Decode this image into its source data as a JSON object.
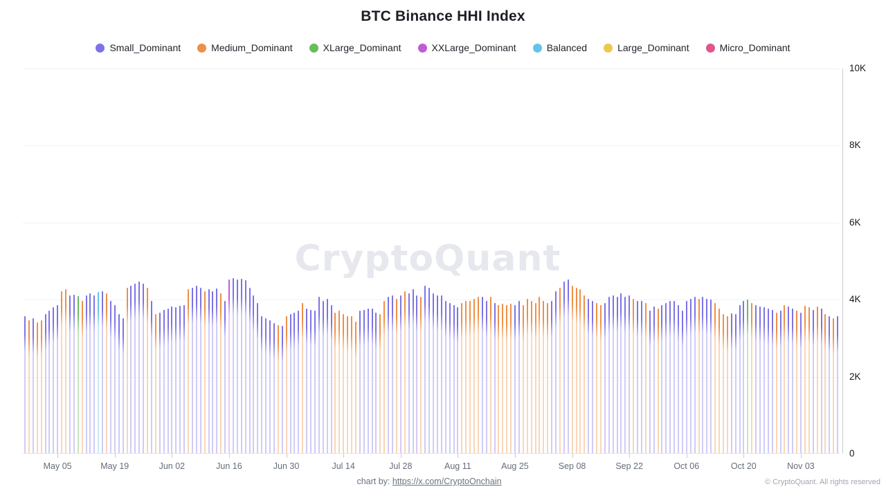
{
  "title": "BTC Binance HHI Index",
  "watermark": "CryptoQuant",
  "legend": [
    {
      "key": "S",
      "label": "Small_Dominant",
      "color": "#7d72e6"
    },
    {
      "key": "M",
      "label": "Medium_Dominant",
      "color": "#ee8f45"
    },
    {
      "key": "X",
      "label": "XLarge_Dominant",
      "color": "#67bd5a"
    },
    {
      "key": "XX",
      "label": "XXLarge_Dominant",
      "color": "#c05cd6"
    },
    {
      "key": "B",
      "label": "Balanced",
      "color": "#62c4e8"
    },
    {
      "key": "L",
      "label": "Large_Dominant",
      "color": "#ecc84d"
    },
    {
      "key": "MI",
      "label": "Micro_Dominant",
      "color": "#e0558c"
    }
  ],
  "category_colors": {
    "S": {
      "solid": "#7d72e6",
      "light": "#d0ccf6"
    },
    "M": {
      "solid": "#ee8f45",
      "light": "#f9d6b8"
    },
    "X": {
      "solid": "#67bd5a",
      "light": "#c5e6bd"
    },
    "B": {
      "solid": "#62c4e8",
      "light": "#c8eaf7"
    },
    "XX": {
      "solid": "#c05cd6",
      "light": "#ecc9f2"
    },
    "L": {
      "solid": "#ecc84d",
      "light": "#f8ecc0"
    },
    "MI": {
      "solid": "#e0558c",
      "light": "#f5c5d8"
    }
  },
  "footer": {
    "credit_prefix": "chart by:",
    "credit_link": "https://x.com/CryptoOnchain",
    "copyright": "© CryptoQuant. All rights reserved"
  },
  "chart_data": {
    "type": "bar",
    "title": "BTC Binance HHI Index",
    "ylim": [
      0,
      10000
    ],
    "y_tick_labels": [
      "10K",
      "8K",
      "6K",
      "4K",
      "2K",
      "0"
    ],
    "y_tick_values": [
      10000,
      8000,
      6000,
      4000,
      2000,
      0
    ],
    "grid": "horizontal",
    "legend_position": "top",
    "bar_count": 200,
    "x_ticks": [
      {
        "label": "May 05",
        "day": 8
      },
      {
        "label": "May 19",
        "day": 22
      },
      {
        "label": "Jun 02",
        "day": 36
      },
      {
        "label": "Jun 16",
        "day": 50
      },
      {
        "label": "Jun 30",
        "day": 64
      },
      {
        "label": "Jul 14",
        "day": 78
      },
      {
        "label": "Jul 28",
        "day": 92
      },
      {
        "label": "Aug 11",
        "day": 106
      },
      {
        "label": "Aug 25",
        "day": 120
      },
      {
        "label": "Sep 08",
        "day": 134
      },
      {
        "label": "Sep 22",
        "day": 148
      },
      {
        "label": "Oct 06",
        "day": 162
      },
      {
        "label": "Oct 20",
        "day": 176
      },
      {
        "label": "Nov 03",
        "day": 190
      }
    ],
    "points": [
      [
        "S",
        3550
      ],
      [
        "M",
        3450
      ],
      [
        "S",
        3500
      ],
      [
        "M",
        3400
      ],
      [
        "M",
        3450
      ],
      [
        "S",
        3600
      ],
      [
        "S",
        3700
      ],
      [
        "S",
        3780
      ],
      [
        "S",
        3850
      ],
      [
        "M",
        4200
      ],
      [
        "M",
        4250
      ],
      [
        "S",
        4100
      ],
      [
        "S",
        4120
      ],
      [
        "X",
        4080
      ],
      [
        "M",
        3950
      ],
      [
        "S",
        4100
      ],
      [
        "S",
        4150
      ],
      [
        "S",
        4100
      ],
      [
        "B",
        4180
      ],
      [
        "S",
        4200
      ],
      [
        "M",
        4150
      ],
      [
        "S",
        3950
      ],
      [
        "S",
        3850
      ],
      [
        "S",
        3600
      ],
      [
        "S",
        3500
      ],
      [
        "M",
        4300
      ],
      [
        "S",
        4350
      ],
      [
        "S",
        4400
      ],
      [
        "S",
        4450
      ],
      [
        "S",
        4400
      ],
      [
        "M",
        4300
      ],
      [
        "S",
        3950
      ],
      [
        "M",
        3600
      ],
      [
        "S",
        3650
      ],
      [
        "S",
        3720
      ],
      [
        "S",
        3750
      ],
      [
        "S",
        3800
      ],
      [
        "S",
        3780
      ],
      [
        "S",
        3820
      ],
      [
        "S",
        3850
      ],
      [
        "M",
        4250
      ],
      [
        "S",
        4300
      ],
      [
        "S",
        4350
      ],
      [
        "S",
        4300
      ],
      [
        "M",
        4200
      ],
      [
        "S",
        4250
      ],
      [
        "S",
        4200
      ],
      [
        "S",
        4280
      ],
      [
        "M",
        4150
      ],
      [
        "S",
        3950
      ],
      [
        "XX",
        4500
      ],
      [
        "S",
        4550
      ],
      [
        "S",
        4500
      ],
      [
        "S",
        4520
      ],
      [
        "S",
        4480
      ],
      [
        "S",
        4300
      ],
      [
        "S",
        4100
      ],
      [
        "S",
        3900
      ],
      [
        "S",
        3550
      ],
      [
        "S",
        3500
      ],
      [
        "S",
        3450
      ],
      [
        "S",
        3380
      ],
      [
        "M",
        3320
      ],
      [
        "S",
        3300
      ],
      [
        "M",
        3550
      ],
      [
        "S",
        3600
      ],
      [
        "S",
        3650
      ],
      [
        "S",
        3700
      ],
      [
        "M",
        3900
      ],
      [
        "S",
        3750
      ],
      [
        "S",
        3720
      ],
      [
        "S",
        3700
      ],
      [
        "S",
        4050
      ],
      [
        "S",
        3950
      ],
      [
        "S",
        4000
      ],
      [
        "S",
        3850
      ],
      [
        "M",
        3650
      ],
      [
        "M",
        3700
      ],
      [
        "M",
        3600
      ],
      [
        "M",
        3550
      ],
      [
        "M",
        3550
      ],
      [
        "M",
        3420
      ],
      [
        "S",
        3700
      ],
      [
        "S",
        3720
      ],
      [
        "S",
        3750
      ],
      [
        "S",
        3750
      ],
      [
        "S",
        3650
      ],
      [
        "M",
        3600
      ],
      [
        "M",
        3950
      ],
      [
        "S",
        4050
      ],
      [
        "S",
        4100
      ],
      [
        "M",
        4000
      ],
      [
        "S",
        4100
      ],
      [
        "M",
        4200
      ],
      [
        "S",
        4150
      ],
      [
        "S",
        4250
      ],
      [
        "S",
        4100
      ],
      [
        "M",
        4050
      ],
      [
        "S",
        4350
      ],
      [
        "S",
        4300
      ],
      [
        "S",
        4150
      ],
      [
        "S",
        4100
      ],
      [
        "S",
        4100
      ],
      [
        "S",
        3950
      ],
      [
        "S",
        3900
      ],
      [
        "S",
        3850
      ],
      [
        "S",
        3780
      ],
      [
        "M",
        3900
      ],
      [
        "M",
        3950
      ],
      [
        "M",
        3950
      ],
      [
        "M",
        4000
      ],
      [
        "M",
        4050
      ],
      [
        "S",
        4050
      ],
      [
        "S",
        3950
      ],
      [
        "M",
        4050
      ],
      [
        "S",
        3900
      ],
      [
        "M",
        3850
      ],
      [
        "M",
        3880
      ],
      [
        "M",
        3850
      ],
      [
        "M",
        3870
      ],
      [
        "S",
        3850
      ],
      [
        "S",
        3950
      ],
      [
        "M",
        3850
      ],
      [
        "M",
        4000
      ],
      [
        "M",
        3950
      ],
      [
        "M",
        3900
      ],
      [
        "M",
        4050
      ],
      [
        "M",
        3950
      ],
      [
        "M",
        3900
      ],
      [
        "S",
        3950
      ],
      [
        "S",
        4200
      ],
      [
        "M",
        4300
      ],
      [
        "S",
        4450
      ],
      [
        "S",
        4500
      ],
      [
        "M",
        4350
      ],
      [
        "M",
        4300
      ],
      [
        "M",
        4250
      ],
      [
        "M",
        4100
      ],
      [
        "S",
        4000
      ],
      [
        "S",
        3950
      ],
      [
        "M",
        3900
      ],
      [
        "M",
        3850
      ],
      [
        "S",
        3900
      ],
      [
        "S",
        4050
      ],
      [
        "S",
        4100
      ],
      [
        "S",
        4050
      ],
      [
        "S",
        4150
      ],
      [
        "S",
        4050
      ],
      [
        "S",
        4100
      ],
      [
        "M",
        4000
      ],
      [
        "S",
        3950
      ],
      [
        "S",
        3950
      ],
      [
        "M",
        3900
      ],
      [
        "S",
        3700
      ],
      [
        "S",
        3800
      ],
      [
        "M",
        3750
      ],
      [
        "S",
        3850
      ],
      [
        "S",
        3900
      ],
      [
        "S",
        3950
      ],
      [
        "S",
        3950
      ],
      [
        "S",
        3850
      ],
      [
        "S",
        3700
      ],
      [
        "S",
        3950
      ],
      [
        "S",
        4000
      ],
      [
        "S",
        4050
      ],
      [
        "M",
        4000
      ],
      [
        "S",
        4050
      ],
      [
        "S",
        4000
      ],
      [
        "S",
        3980
      ],
      [
        "M",
        3900
      ],
      [
        "M",
        3750
      ],
      [
        "M",
        3600
      ],
      [
        "M",
        3550
      ],
      [
        "S",
        3620
      ],
      [
        "S",
        3600
      ],
      [
        "S",
        3850
      ],
      [
        "S",
        3950
      ],
      [
        "X",
        3980
      ],
      [
        "M",
        3900
      ],
      [
        "S",
        3850
      ],
      [
        "S",
        3800
      ],
      [
        "S",
        3780
      ],
      [
        "S",
        3750
      ],
      [
        "S",
        3720
      ],
      [
        "M",
        3650
      ],
      [
        "S",
        3700
      ],
      [
        "M",
        3850
      ],
      [
        "S",
        3800
      ],
      [
        "S",
        3750
      ],
      [
        "M",
        3700
      ],
      [
        "S",
        3650
      ],
      [
        "M",
        3820
      ],
      [
        "M",
        3780
      ],
      [
        "S",
        3720
      ],
      [
        "M",
        3800
      ],
      [
        "S",
        3750
      ],
      [
        "M",
        3600
      ],
      [
        "S",
        3550
      ],
      [
        "M",
        3500
      ],
      [
        "S",
        3550
      ]
    ]
  }
}
